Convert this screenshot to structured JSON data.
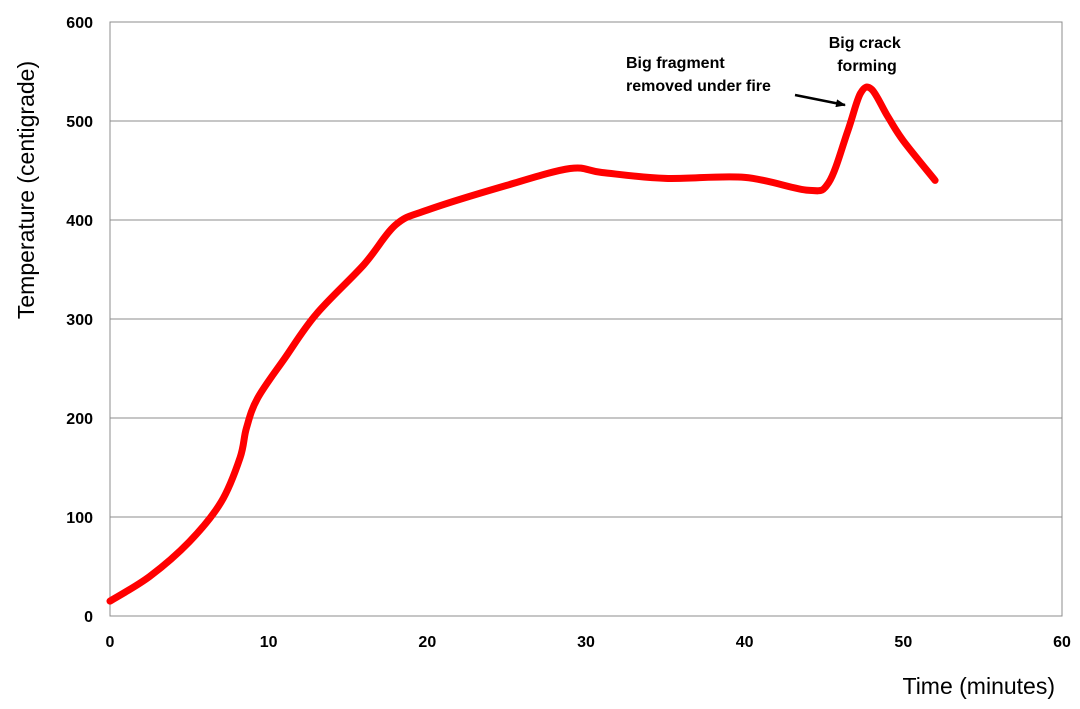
{
  "chart_data": {
    "type": "line",
    "xlabel": "Time (minutes)",
    "ylabel": "Temperature (centigrade)",
    "xlim": [
      0,
      60
    ],
    "ylim": [
      0,
      600
    ],
    "x_ticks": [
      "0",
      "10",
      "20",
      "30",
      "40",
      "50",
      "60"
    ],
    "y_ticks": [
      "0",
      "100",
      "200",
      "300",
      "400",
      "500",
      "600"
    ],
    "grid": "horizontal",
    "legend": "none",
    "series": [
      {
        "color": "#ff0000",
        "points": [
          [
            0,
            15
          ],
          [
            2.5,
            40
          ],
          [
            5,
            75
          ],
          [
            7,
            115
          ],
          [
            8.2,
            160
          ],
          [
            8.6,
            190
          ],
          [
            9.3,
            220
          ],
          [
            11,
            260
          ],
          [
            13,
            305
          ],
          [
            16,
            355
          ],
          [
            18,
            395
          ],
          [
            20,
            410
          ],
          [
            25,
            435
          ],
          [
            29,
            452
          ],
          [
            31,
            448
          ],
          [
            35,
            442
          ],
          [
            40,
            443
          ],
          [
            44,
            430
          ],
          [
            45.3,
            438
          ],
          [
            46.5,
            490
          ],
          [
            47.3,
            528
          ],
          [
            48,
            532
          ],
          [
            49,
            505
          ],
          [
            50,
            480
          ],
          [
            52,
            440
          ]
        ]
      }
    ],
    "annotations": [
      {
        "lines": [
          "Big fragment",
          "removed under fire"
        ]
      },
      {
        "lines": [
          "Big crack",
          "forming"
        ]
      }
    ]
  }
}
